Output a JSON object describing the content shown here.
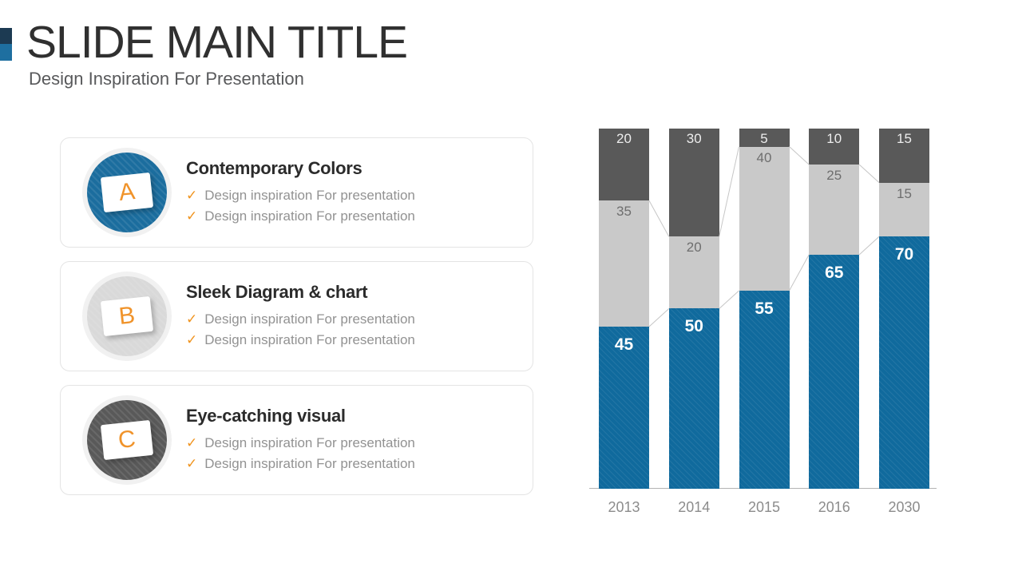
{
  "header": {
    "title": "SLIDE MAIN TITLE",
    "subtitle": "Design Inspiration For Presentation",
    "accent_dark": "#1c3a52",
    "accent_blue": "#1e6fa0"
  },
  "icons": {
    "check": "✓"
  },
  "cards": [
    {
      "letter": "A",
      "title": "Contemporary Colors",
      "circle_color": "#1b6d9e",
      "items": [
        "Design inspiration For presentation",
        "Design inspiration For presentation"
      ]
    },
    {
      "letter": "B",
      "title": "Sleek Diagram & chart",
      "circle_color": "#d9d9d9",
      "items": [
        "Design inspiration For presentation",
        "Design inspiration For presentation"
      ]
    },
    {
      "letter": "C",
      "title": "Eye-catching visual",
      "circle_color": "#595959",
      "items": [
        "Design inspiration For presentation",
        "Design inspiration For presentation"
      ]
    }
  ],
  "chart_data": {
    "type": "bar",
    "subtype": "percent-stacked-column",
    "title": "",
    "xlabel": "",
    "ylabel": "",
    "categories": [
      "2013",
      "2014",
      "2015",
      "2016",
      "2030"
    ],
    "series": [
      {
        "name": "blue-bottom",
        "color": "#106a9d",
        "striped": true,
        "label_style": "bold-white",
        "values": [
          45,
          50,
          55,
          65,
          70
        ]
      },
      {
        "name": "gray-middle",
        "color": "#c9c9c9",
        "striped": false,
        "label_style": "gray",
        "values": [
          35,
          20,
          40,
          25,
          15
        ]
      },
      {
        "name": "dark-top",
        "color": "#595959",
        "striped": false,
        "label_style": "light",
        "values": [
          20,
          30,
          5,
          10,
          15
        ]
      }
    ],
    "ylim": [
      0,
      100
    ],
    "grid": false,
    "legend": null,
    "data_labels": true,
    "connector_lines": true,
    "connector_color": "#c6c6c6",
    "axis_line_color": "#b3b3b3"
  }
}
